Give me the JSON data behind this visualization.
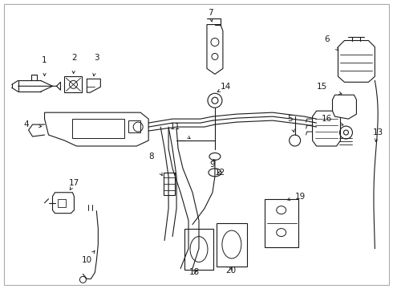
{
  "background_color": "#ffffff",
  "line_color": "#1a1a1a",
  "border_color": "#aaaaaa",
  "fig_width": 4.9,
  "fig_height": 3.6,
  "dpi": 100
}
